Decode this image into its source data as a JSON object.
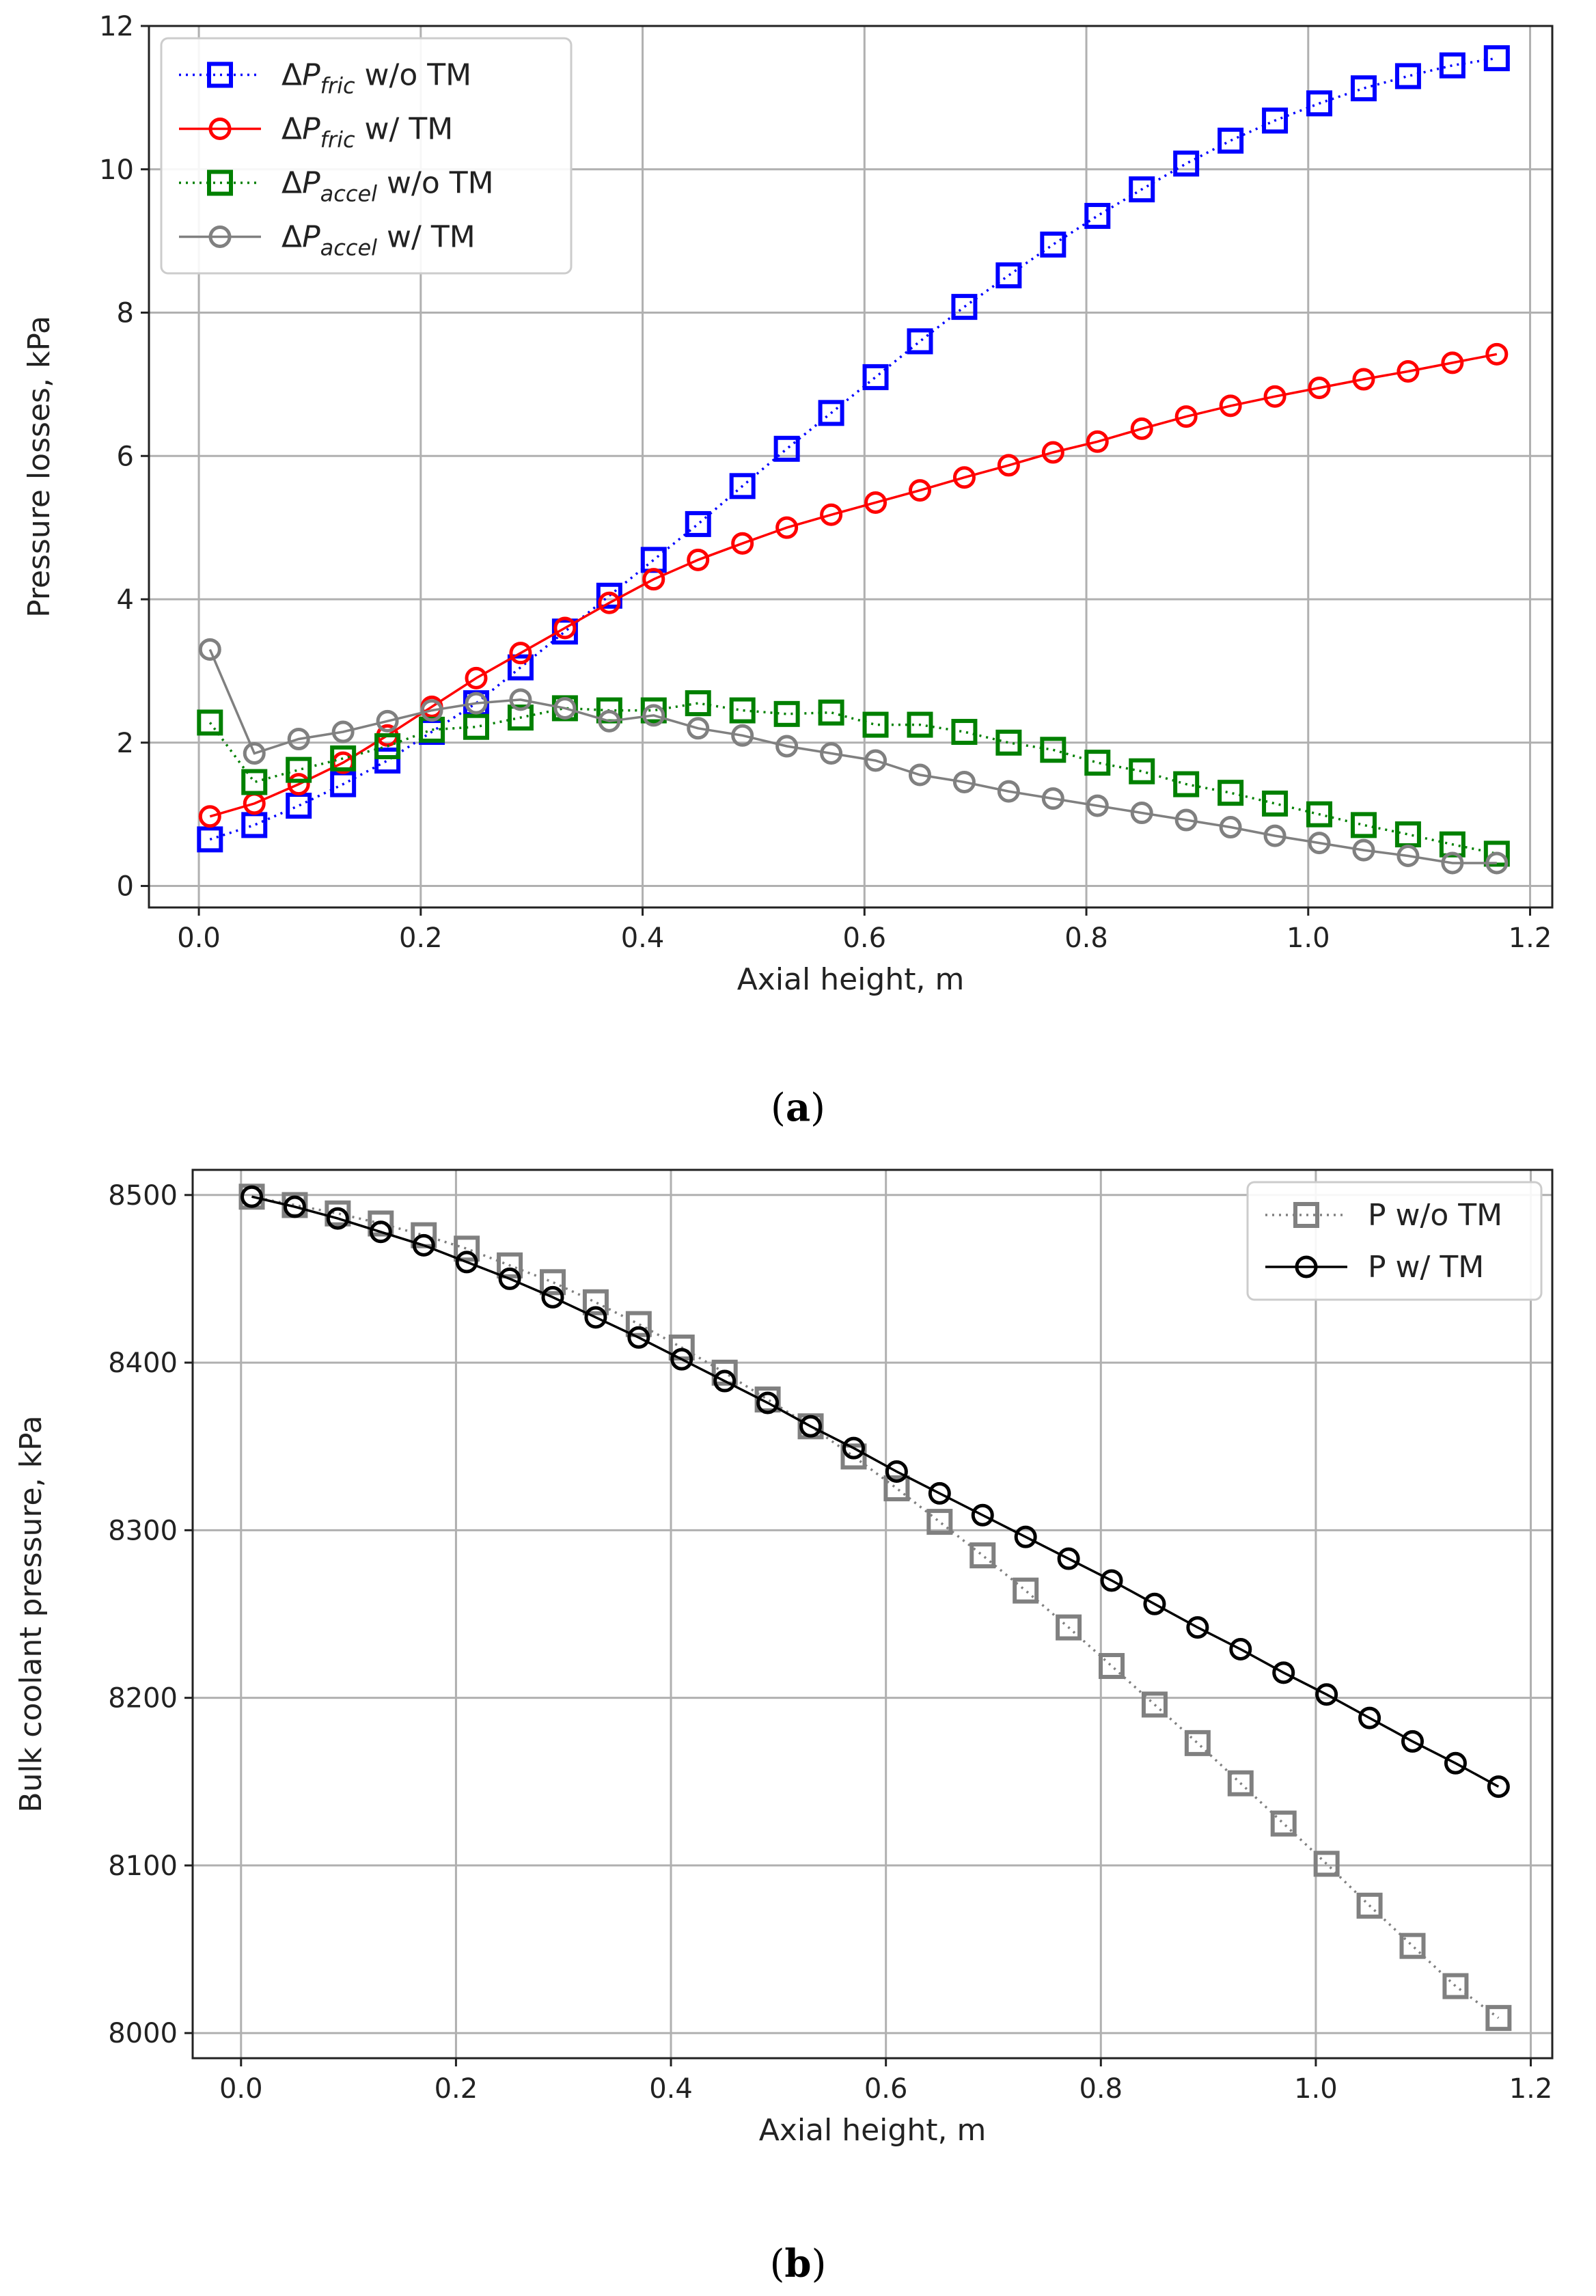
{
  "captions": {
    "a": "a",
    "b": "b"
  },
  "chart_data": [
    {
      "type": "line",
      "id": "a",
      "xlabel": "Axial height, m",
      "ylabel": "Pressure losses, kPa",
      "xlim": [
        -0.045,
        1.22
      ],
      "ylim": [
        -0.3,
        12
      ],
      "xticks": [
        0.0,
        0.2,
        0.4,
        0.6,
        0.8,
        1.0,
        1.2
      ],
      "xtick_labels": [
        "0.0",
        "0.2",
        "0.4",
        "0.6",
        "0.8",
        "1.0",
        "1.2"
      ],
      "yticks": [
        0,
        2,
        4,
        6,
        8,
        10,
        12
      ],
      "ytick_labels": [
        "0",
        "2",
        "4",
        "6",
        "8",
        "10",
        "12"
      ],
      "grid": true,
      "legend_position": "top-left",
      "x": [
        0.01,
        0.05,
        0.09,
        0.13,
        0.17,
        0.21,
        0.25,
        0.29,
        0.33,
        0.37,
        0.41,
        0.45,
        0.49,
        0.53,
        0.57,
        0.61,
        0.65,
        0.69,
        0.73,
        0.77,
        0.81,
        0.85,
        0.89,
        0.93,
        0.97,
        1.01,
        1.05,
        1.09,
        1.13,
        1.17
      ],
      "series": [
        {
          "name": "ΔPfric w/o TM",
          "legend": {
            "main": "P",
            "sub": "fric",
            "suffix": " w/o TM"
          },
          "color": "#0000ff",
          "marker": "square",
          "linestyle": "dotted",
          "values": [
            0.65,
            0.85,
            1.12,
            1.42,
            1.75,
            2.15,
            2.55,
            3.05,
            3.55,
            4.05,
            4.55,
            5.05,
            5.58,
            6.1,
            6.6,
            7.1,
            7.6,
            8.08,
            8.52,
            8.95,
            9.35,
            9.72,
            10.08,
            10.4,
            10.68,
            10.92,
            11.13,
            11.3,
            11.45,
            11.55
          ]
        },
        {
          "name": "ΔPfric w/ TM",
          "legend": {
            "main": "P",
            "sub": "fric",
            "suffix": " w/ TM"
          },
          "color": "#ff0000",
          "marker": "circle",
          "linestyle": "solid",
          "values": [
            0.97,
            1.15,
            1.42,
            1.72,
            2.1,
            2.5,
            2.9,
            3.25,
            3.6,
            3.95,
            4.28,
            4.55,
            4.78,
            5.0,
            5.18,
            5.35,
            5.52,
            5.7,
            5.87,
            6.05,
            6.2,
            6.38,
            6.55,
            6.7,
            6.83,
            6.95,
            7.07,
            7.18,
            7.3,
            7.42
          ]
        },
        {
          "name": "ΔPaccel w/o TM",
          "legend": {
            "main": "P",
            "sub": "accel",
            "suffix": " w/o TM"
          },
          "color": "#008000",
          "marker": "square",
          "linestyle": "dotted",
          "values": [
            2.28,
            1.45,
            1.62,
            1.78,
            1.95,
            2.18,
            2.22,
            2.35,
            2.48,
            2.45,
            2.45,
            2.55,
            2.45,
            2.4,
            2.42,
            2.25,
            2.25,
            2.15,
            2.0,
            1.9,
            1.72,
            1.6,
            1.42,
            1.3,
            1.15,
            1.0,
            0.85,
            0.72,
            0.58,
            0.45
          ]
        },
        {
          "name": "ΔPaccel w/ TM",
          "legend": {
            "main": "P",
            "sub": "accel",
            "suffix": " w/ TM"
          },
          "color": "#808080",
          "marker": "circle",
          "linestyle": "solid",
          "values": [
            3.3,
            1.85,
            2.05,
            2.15,
            2.3,
            2.45,
            2.55,
            2.6,
            2.48,
            2.3,
            2.38,
            2.2,
            2.1,
            1.95,
            1.85,
            1.75,
            1.55,
            1.45,
            1.32,
            1.22,
            1.12,
            1.02,
            0.92,
            0.82,
            0.7,
            0.6,
            0.5,
            0.42,
            0.32,
            0.32
          ]
        }
      ]
    },
    {
      "type": "line",
      "id": "b",
      "xlabel": "Axial height, m",
      "ylabel": "Bulk coolant pressure, kPa",
      "xlim": [
        -0.045,
        1.22
      ],
      "ylim": [
        7985,
        8515
      ],
      "xticks": [
        0.0,
        0.2,
        0.4,
        0.6,
        0.8,
        1.0,
        1.2
      ],
      "xtick_labels": [
        "0.0",
        "0.2",
        "0.4",
        "0.6",
        "0.8",
        "1.0",
        "1.2"
      ],
      "yticks": [
        8000,
        8100,
        8200,
        8300,
        8400,
        8500
      ],
      "ytick_labels": [
        "8000",
        "8100",
        "8200",
        "8300",
        "8400",
        "8500"
      ],
      "grid": true,
      "legend_position": "top-right",
      "x": [
        0.01,
        0.05,
        0.09,
        0.13,
        0.17,
        0.21,
        0.25,
        0.29,
        0.33,
        0.37,
        0.41,
        0.45,
        0.49,
        0.53,
        0.57,
        0.61,
        0.65,
        0.69,
        0.73,
        0.77,
        0.81,
        0.85,
        0.89,
        0.93,
        0.97,
        1.01,
        1.05,
        1.09,
        1.13,
        1.17
      ],
      "series": [
        {
          "name": "P w/o TM",
          "legend": {
            "main": "P w/o TM",
            "sub": "",
            "suffix": ""
          },
          "color": "#808080",
          "marker": "square",
          "linestyle": "dotted",
          "values": [
            8499,
            8494,
            8489,
            8483,
            8476,
            8468,
            8458,
            8448,
            8436,
            8423,
            8409,
            8394,
            8378,
            8362,
            8344,
            8325,
            8305,
            8285,
            8264,
            8242,
            8219,
            8196,
            8173,
            8149,
            8125,
            8101,
            8076,
            8052,
            8028,
            8009
          ]
        },
        {
          "name": "P w/ TM",
          "legend": {
            "main": "P w/ TM",
            "sub": "",
            "suffix": ""
          },
          "color": "#000000",
          "marker": "circle",
          "linestyle": "solid",
          "values": [
            8499,
            8493,
            8486,
            8478,
            8470,
            8460,
            8450,
            8439,
            8427,
            8415,
            8402,
            8389,
            8376,
            8362,
            8349,
            8335,
            8322,
            8309,
            8296,
            8283,
            8270,
            8256,
            8242,
            8229,
            8215,
            8202,
            8188,
            8174,
            8161,
            8147
          ]
        }
      ]
    }
  ]
}
